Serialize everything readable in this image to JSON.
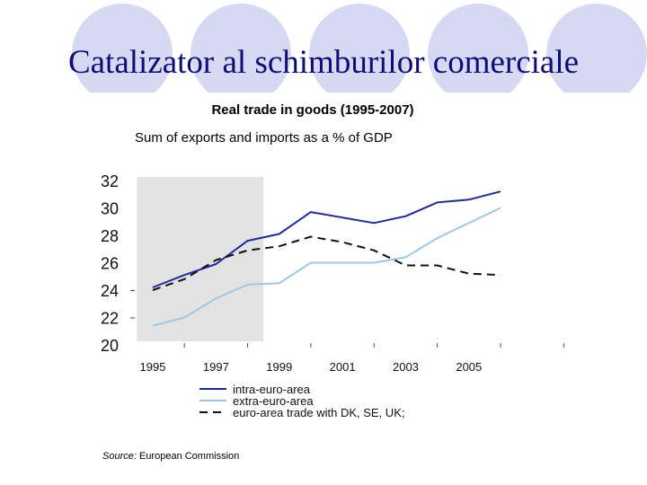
{
  "slide": {
    "title": "Catalizator al schimburilor comerciale"
  },
  "chart_data": {
    "type": "line",
    "title": "Real trade in goods (1995-2007)",
    "subtitle": "Sum of exports and imports as a % of GDP",
    "x": [
      1995,
      1996,
      1997,
      1998,
      1999,
      2000,
      2001,
      2002,
      2003,
      2004,
      2005,
      2006
    ],
    "x_ticks": [
      "1995",
      "1997",
      "1999",
      "2001",
      "2003",
      "2005"
    ],
    "y_ticks": [
      "32",
      "30",
      "28",
      "26",
      "24",
      "22",
      "20"
    ],
    "ylim": [
      20,
      32
    ],
    "shaded_region": [
      1994.5,
      1998.5
    ],
    "series": [
      {
        "name": "intra-euro-area",
        "color": "#1f2a9c",
        "dash": "solid",
        "values": [
          24.2,
          25.1,
          25.9,
          27.6,
          28.1,
          29.7,
          29.3,
          28.9,
          29.4,
          30.4,
          30.6,
          31.2
        ]
      },
      {
        "name": "extra-euro-area",
        "color": "#9ec8e6",
        "dash": "solid",
        "values": [
          21.4,
          22.0,
          23.4,
          24.4,
          24.5,
          26.0,
          26.0,
          26.0,
          26.4,
          27.8,
          28.9,
          30.0
        ]
      },
      {
        "name": "euro-area trade with DK, SE, UK;",
        "color": "#111111",
        "dash": "dashed",
        "values": [
          24.0,
          24.8,
          26.2,
          26.9,
          27.2,
          27.9,
          27.5,
          26.9,
          25.8,
          25.8,
          25.2,
          25.1
        ]
      }
    ]
  },
  "source": {
    "label": "Source:",
    "text": " European Commission"
  }
}
